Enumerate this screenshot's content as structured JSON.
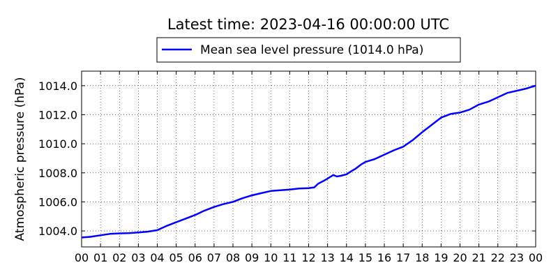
{
  "chart_data": {
    "type": "line",
    "title": "Latest time: 2023-04-16 00:00:00 UTC",
    "xlabel": "",
    "ylabel": "Atmospheric pressure (hPa)",
    "xlim": [
      0,
      24
    ],
    "ylim": [
      1002.9,
      1015.0
    ],
    "x_tick_labels": [
      "00",
      "01",
      "02",
      "03",
      "04",
      "05",
      "06",
      "07",
      "08",
      "09",
      "10",
      "11",
      "12",
      "13",
      "14",
      "15",
      "16",
      "17",
      "18",
      "19",
      "20",
      "21",
      "22",
      "23",
      "00"
    ],
    "y_ticks": [
      1004.0,
      1006.0,
      1008.0,
      1010.0,
      1012.0,
      1014.0
    ],
    "y_tick_labels": [
      "1004.0",
      "1006.0",
      "1008.0",
      "1010.0",
      "1012.0",
      "1014.0"
    ],
    "grid": true,
    "legend_position": "top-center",
    "series": [
      {
        "name": "Mean sea level pressure (1014.0 hPa)",
        "color": "#0000ff",
        "x": [
          0,
          0.5,
          1,
          1.5,
          2,
          2.5,
          3,
          3.5,
          4,
          4.5,
          5,
          5.5,
          6,
          6.5,
          7,
          7.5,
          8,
          8.5,
          9,
          9.5,
          10,
          10.5,
          11,
          11.5,
          12,
          12.3,
          12.5,
          12.8,
          13,
          13.3,
          13.5,
          13.7,
          14,
          14.3,
          14.5,
          14.8,
          15,
          15.5,
          16,
          16.5,
          17,
          17.5,
          18,
          18.5,
          19,
          19.5,
          20,
          20.5,
          21,
          21.5,
          22,
          22.5,
          23,
          23.5,
          24
        ],
        "y": [
          1003.55,
          1003.6,
          1003.7,
          1003.8,
          1003.83,
          1003.85,
          1003.9,
          1003.95,
          1004.05,
          1004.35,
          1004.6,
          1004.85,
          1005.1,
          1005.4,
          1005.65,
          1005.85,
          1006.0,
          1006.25,
          1006.45,
          1006.6,
          1006.75,
          1006.8,
          1006.85,
          1006.92,
          1006.95,
          1007.0,
          1007.25,
          1007.45,
          1007.6,
          1007.85,
          1007.75,
          1007.8,
          1007.9,
          1008.15,
          1008.3,
          1008.6,
          1008.75,
          1008.95,
          1009.25,
          1009.55,
          1009.8,
          1010.25,
          1010.8,
          1011.3,
          1011.8,
          1012.05,
          1012.15,
          1012.35,
          1012.7,
          1012.9,
          1013.2,
          1013.5,
          1013.65,
          1013.8,
          1014.0
        ]
      }
    ]
  }
}
